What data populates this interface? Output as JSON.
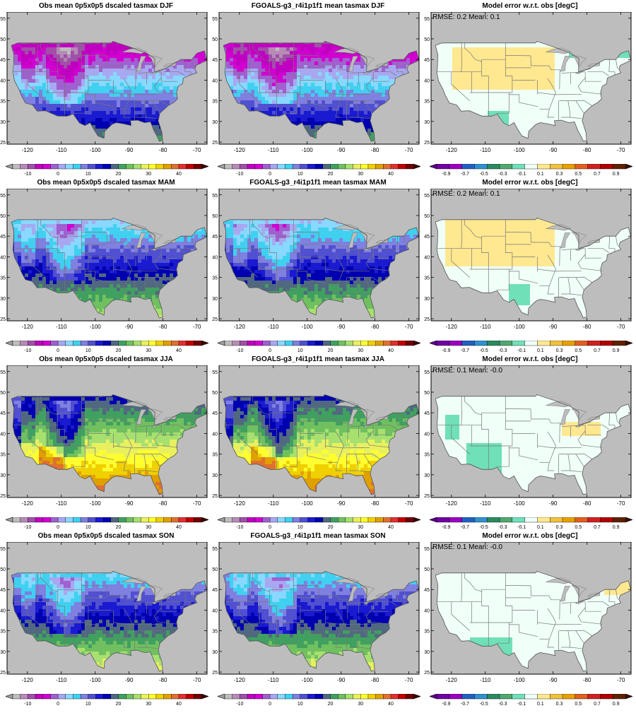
{
  "panels": [
    {
      "title": "Obs mean 0p5x0p5 dscaled tasmax DJF",
      "kind": "obs",
      "season": "DJF",
      "rmse_text": ""
    },
    {
      "title": "FGOALS-g3_r4i1p1f1 mean tasmax DJF",
      "kind": "obs",
      "season": "DJF",
      "rmse_text": ""
    },
    {
      "title": "Model error w.r.t. obs [degC]",
      "kind": "err",
      "season": "DJF",
      "rmse_text": "RMSE: 0.2  Mean: 0.1"
    },
    {
      "title": "Obs mean 0p5x0p5 dscaled tasmax MAM",
      "kind": "obs",
      "season": "MAM",
      "rmse_text": ""
    },
    {
      "title": "FGOALS-g3_r4i1p1f1 mean tasmax MAM",
      "kind": "obs",
      "season": "MAM",
      "rmse_text": ""
    },
    {
      "title": "Model error w.r.t. obs [degC]",
      "kind": "err",
      "season": "MAM",
      "rmse_text": "RMSE: 0.2  Mean: 0.1"
    },
    {
      "title": "Obs mean 0p5x0p5 dscaled tasmax JJA",
      "kind": "obs",
      "season": "JJA",
      "rmse_text": ""
    },
    {
      "title": "FGOALS-g3_r4i1p1f1 mean tasmax JJA",
      "kind": "obs",
      "season": "JJA",
      "rmse_text": ""
    },
    {
      "title": "Model error w.r.t. obs [degC]",
      "kind": "err",
      "season": "JJA",
      "rmse_text": "RMSE: 0.1  Mean: -0.0"
    },
    {
      "title": "Obs mean 0p5x0p5 dscaled tasmax SON",
      "kind": "obs",
      "season": "SON",
      "rmse_text": ""
    },
    {
      "title": "FGOALS-g3_r4i1p1f1 mean tasmax SON",
      "kind": "obs",
      "season": "SON",
      "rmse_text": ""
    },
    {
      "title": "Model error w.r.t. obs [degC]",
      "kind": "err",
      "season": "SON",
      "rmse_text": "RMSE: 0.1  Mean: -0.0"
    }
  ],
  "axes": {
    "lon_ticks": [
      "-120",
      "-110",
      "-100",
      "-90",
      "-80",
      "-70"
    ],
    "lat_ticks": [
      "55",
      "50",
      "45",
      "40",
      "35",
      "30",
      "25"
    ]
  },
  "temp_colorbar": {
    "labels": [
      "-10",
      "0",
      "10",
      "20",
      "30",
      "40"
    ],
    "colors": [
      "#bdbdbd",
      "#b78ab8",
      "#a050a8",
      "#c000c0",
      "#d000d0",
      "#a060d0",
      "#a8a8f0",
      "#88d8ff",
      "#40d0f0",
      "#8080e0",
      "#5050d0",
      "#1a1ad0",
      "#0000b0",
      "#506880",
      "#40a060",
      "#70c060",
      "#a8e070",
      "#e8f060",
      "#ffff30",
      "#f0d000",
      "#e0a000",
      "#e07030",
      "#e03030",
      "#c00000",
      "#700000"
    ]
  },
  "err_colorbar": {
    "labels": [
      "-0.9",
      "-0.7",
      "-0.5",
      "-0.3",
      "-0.1",
      "0.1",
      "0.3",
      "0.5",
      "0.7",
      "0.9"
    ],
    "colors": [
      "#7000a0",
      "#9a00c0",
      "#2060c0",
      "#3090d0",
      "#2a8a60",
      "#50a870",
      "#70e0b8",
      "#f0fff8",
      "#ffe890",
      "#f0c040",
      "#e8a000",
      "#e06020",
      "#d02020",
      "#b00000",
      "#602000"
    ]
  }
}
